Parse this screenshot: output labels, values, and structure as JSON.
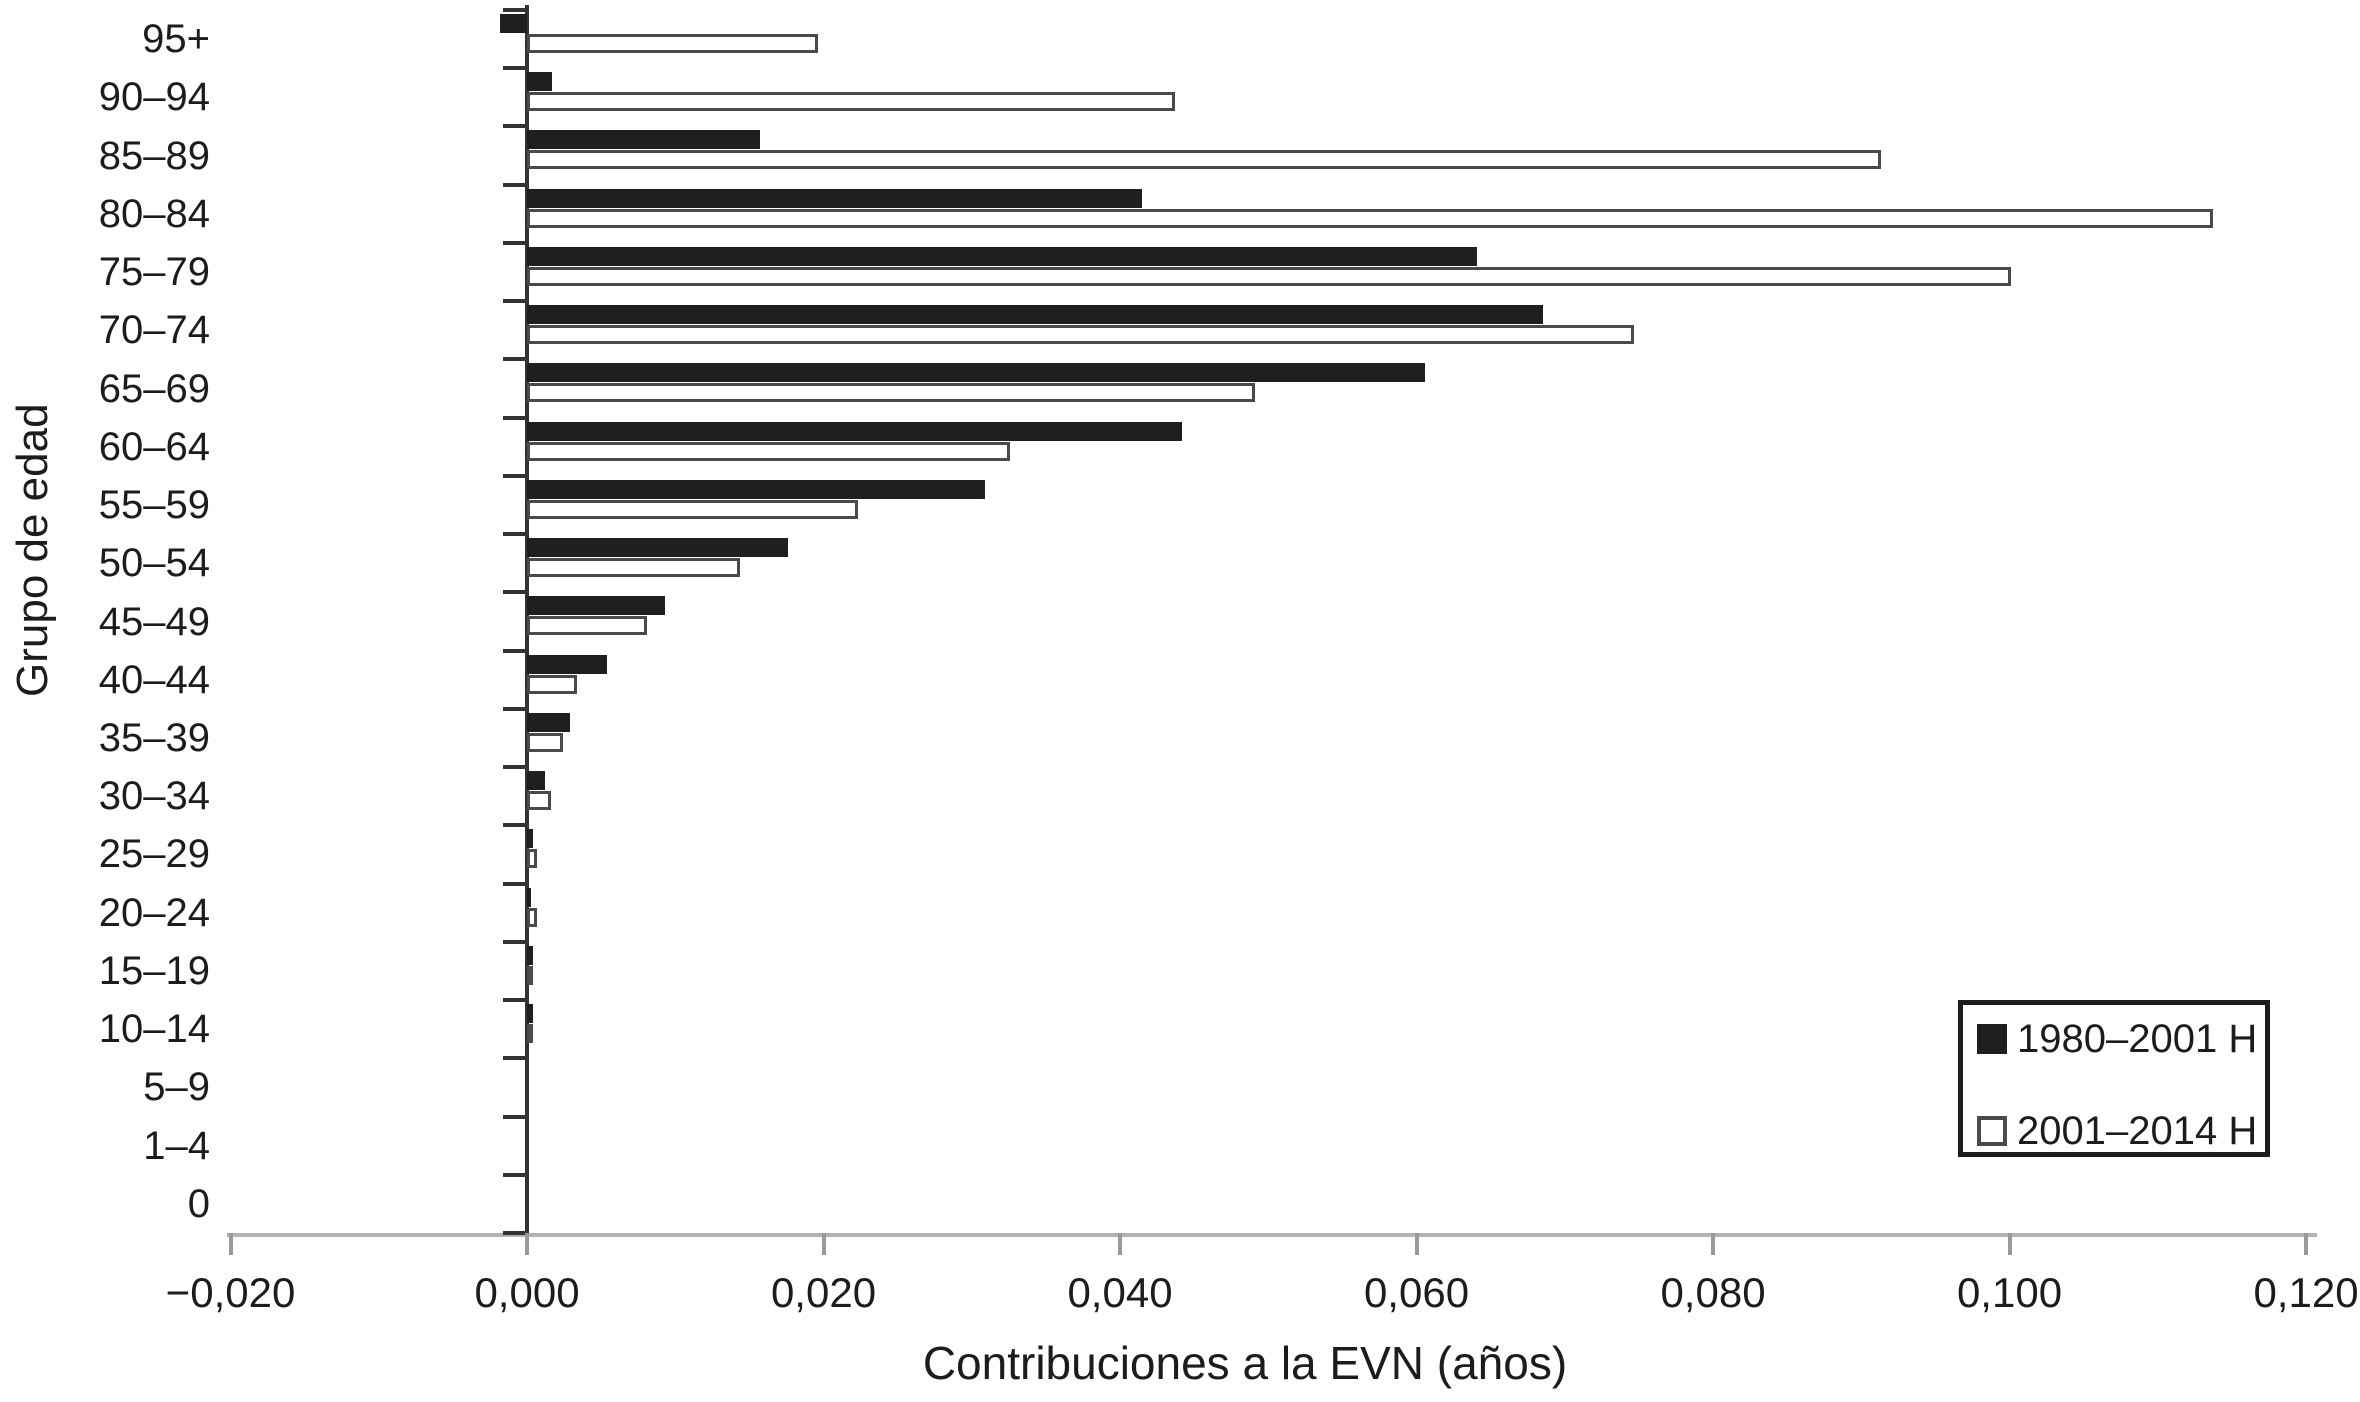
{
  "chart": {
    "y_axis_title": "Grupo de edad",
    "x_axis_title": "Contribuciones a la EVN (años)",
    "legend": {
      "series1_label": "1980–2001 H",
      "series2_label": "2001–2014 H"
    }
  },
  "chart_data": {
    "type": "bar",
    "orientation": "horizontal",
    "title": "",
    "xlabel": "Contribuciones a la EVN (años)",
    "ylabel": "Grupo de edad",
    "categories": [
      "95+",
      "90–94",
      "85–89",
      "80–84",
      "75–79",
      "70–74",
      "65–69",
      "60–64",
      "55–59",
      "50–54",
      "45–49",
      "40–44",
      "35–39",
      "30–34",
      "25–29",
      "20–24",
      "15–19",
      "10–14",
      "5–9",
      "1–4",
      "0"
    ],
    "series": [
      {
        "name": "1980–2001 H",
        "style": "solid-black",
        "values": [
          -0.0018,
          0.0017,
          0.0157,
          0.0415,
          0.0641,
          0.0685,
          0.0606,
          0.0442,
          0.0309,
          0.0176,
          0.0093,
          0.0054,
          0.0029,
          0.0012,
          0.0004,
          0.0003,
          0.0004,
          0.0004,
          0.0,
          0.0,
          0.0
        ]
      },
      {
        "name": "2001–2014 H",
        "style": "white-outlined",
        "values": [
          0.0196,
          0.0437,
          0.0913,
          0.1137,
          0.1001,
          0.0747,
          0.0491,
          0.0326,
          0.0223,
          0.0144,
          0.0081,
          0.0034,
          0.0024,
          0.0016,
          0.0007,
          0.0007,
          0.0004,
          0.0002,
          0.0,
          0.0,
          0.0
        ]
      }
    ],
    "x_axis": {
      "tick_labels": [
        "−0,020",
        "0,000",
        "0,020",
        "0,040",
        "0,060",
        "0,080",
        "0,100",
        "0,120"
      ],
      "tick_values": [
        -0.02,
        0.0,
        0.02,
        0.04,
        0.06,
        0.08,
        0.1,
        0.12
      ],
      "range": [
        -0.02,
        0.1235
      ],
      "decimal_separator": ","
    },
    "legend_position": "bottom-right",
    "grid": false,
    "colors": {
      "bar_fill": "#211e1f",
      "bar_outline": "#4a4a4a",
      "y_axis": "#333333",
      "x_axis": "#b3b3b3",
      "text": "#1c1c1c"
    }
  }
}
